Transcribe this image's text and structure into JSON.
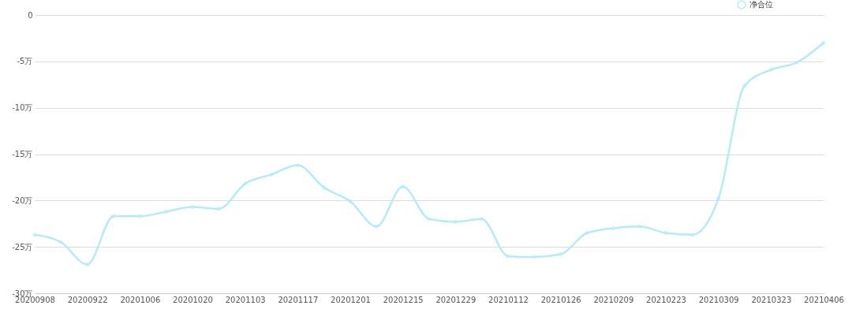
{
  "chart_data": {
    "type": "line",
    "categories": [
      "20200908",
      null,
      "20200922",
      null,
      "20201006",
      null,
      "20201020",
      null,
      "20201103",
      null,
      "20201117",
      null,
      "20201201",
      null,
      "20201215",
      null,
      "20201229",
      null,
      "20210112",
      null,
      "20210126",
      null,
      "20210209",
      null,
      "20210223",
      null,
      "20210309",
      null,
      "20210323",
      null,
      "20210406"
    ],
    "series": [
      {
        "name": "净合位",
        "color": "#b8eaf3",
        "values": [
          -23.7,
          -24.5,
          -26.9,
          -21.7,
          -21.7,
          -21.2,
          -20.7,
          -20.9,
          -18.2,
          -17.2,
          -16.2,
          -18.6,
          -20.1,
          -22.8,
          -18.5,
          -22.0,
          -22.3,
          -22.0,
          -26.0,
          -26.1,
          -25.8,
          -23.5,
          -23.0,
          -22.8,
          -23.5,
          -23.7,
          -19.8,
          -7.6,
          -5.9,
          -5.1,
          -3.0
        ]
      }
    ],
    "ylim": [
      -30,
      0
    ],
    "yticks": [
      {
        "value": -30,
        "label": "-30万"
      },
      {
        "value": -25,
        "label": "-25万"
      },
      {
        "value": -20,
        "label": "-20万"
      },
      {
        "value": -15,
        "label": "-15万"
      },
      {
        "value": -10,
        "label": "-10万"
      },
      {
        "value": -5,
        "label": "-5万"
      },
      0
    ],
    "grid": "y",
    "legend": "top right",
    "marker": "circle",
    "line_style": "solid"
  }
}
